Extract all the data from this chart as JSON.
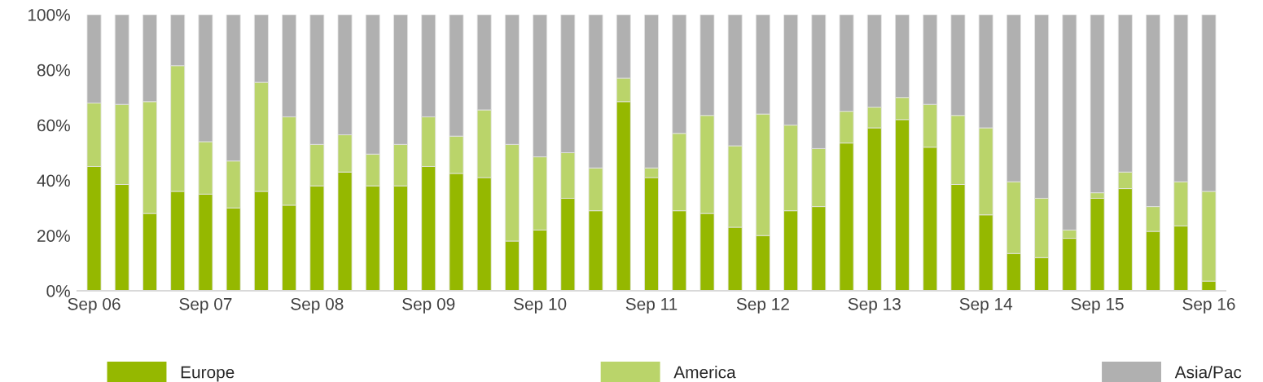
{
  "chart_data": {
    "type": "bar",
    "stacked": true,
    "categories": [
      "Sep 06",
      null,
      null,
      null,
      "Sep 07",
      null,
      null,
      null,
      "Sep 08",
      null,
      null,
      null,
      "Sep 09",
      null,
      null,
      null,
      "Sep 10",
      null,
      null,
      null,
      "Sep 11",
      null,
      null,
      null,
      "Sep 12",
      null,
      null,
      null,
      "Sep 13",
      null,
      null,
      null,
      "Sep 14",
      null,
      null,
      null,
      "Sep 15",
      null,
      null,
      null,
      "Sep 16"
    ],
    "series": [
      {
        "name": "Europe",
        "color": "#95b800",
        "values": [
          45,
          38.5,
          28,
          36,
          35,
          30,
          36,
          31,
          38,
          43,
          38,
          38,
          45,
          42.5,
          41,
          18,
          22,
          33.5,
          29,
          68.5,
          41,
          29,
          28,
          23,
          20,
          29,
          30.5,
          53.5,
          59,
          62,
          52,
          38.5,
          27.5,
          13.5,
          12,
          19,
          33.5,
          37,
          21.5,
          23.5,
          3.5
        ]
      },
      {
        "name": "America",
        "color": "#bad46a",
        "values": [
          23,
          29,
          40.5,
          45.5,
          19,
          17,
          39.5,
          32,
          15,
          13.5,
          11.5,
          15,
          18,
          13.5,
          24.5,
          35,
          26.5,
          16.5,
          15.5,
          8.5,
          3.5,
          28,
          35.5,
          29.5,
          44,
          31,
          21,
          11.5,
          7.5,
          8,
          15.5,
          25,
          31.5,
          26,
          21.5,
          3,
          2,
          6,
          9,
          16,
          32.5
        ]
      },
      {
        "name": "Asia/Pac",
        "color": "#b0b0b0",
        "values": [
          32,
          32.5,
          31.5,
          18.5,
          46,
          53,
          24.5,
          37,
          47,
          43.5,
          50.5,
          47,
          37,
          44,
          34.5,
          47,
          51.5,
          50,
          55.5,
          23,
          55.5,
          43,
          36.5,
          47.5,
          36,
          40,
          48.5,
          35,
          33.5,
          30,
          32.5,
          36.5,
          41,
          60.5,
          66.5,
          78,
          64.5,
          57,
          69.5,
          60.5,
          64
        ]
      }
    ],
    "ylim": [
      0,
      100
    ],
    "yticks": [
      {
        "value": 0,
        "label": "0%"
      },
      {
        "value": 20,
        "label": "20%"
      },
      {
        "value": 40,
        "label": "40%"
      },
      {
        "value": 60,
        "label": "60%"
      },
      {
        "value": 80,
        "label": "80%"
      },
      {
        "value": 100,
        "label": "100%"
      }
    ],
    "grid": false,
    "legend": "bottom"
  }
}
